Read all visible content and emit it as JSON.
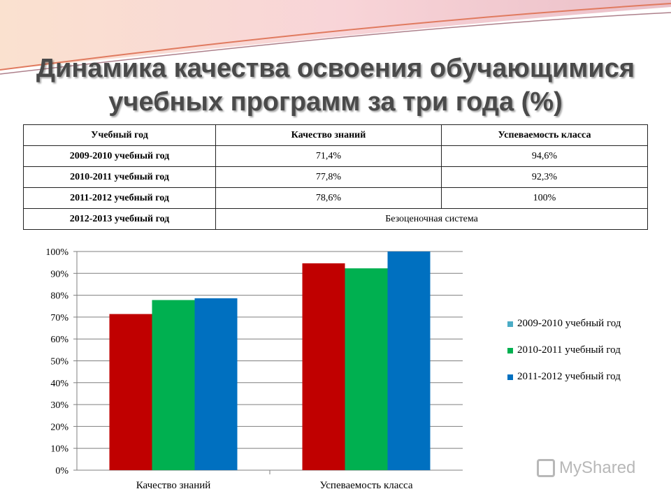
{
  "title": {
    "line1": "Динамика качества освоения обучающимися",
    "line2": "учебных программ за три года (%)"
  },
  "table": {
    "headers": [
      "Учебный год",
      "Качество знаний",
      "Успеваемость класса"
    ],
    "rows": [
      {
        "year": "2009-2010 учебный год",
        "quality": "71,4%",
        "progress": "94,6%"
      },
      {
        "year": "2010-2011 учебный год",
        "quality": "77,8%",
        "progress": "92,3%"
      },
      {
        "year": "2011-2012 учебный год",
        "quality": "78,6%",
        "progress": "100%"
      },
      {
        "year": "2012-2013 учебный год",
        "merged": "Безоценочная система"
      }
    ]
  },
  "chart_data": {
    "type": "bar",
    "categories": [
      "Качество знаний",
      "Успеваемость класса"
    ],
    "series": [
      {
        "name": "2009-2010 учебный год",
        "values": [
          71.4,
          94.6
        ],
        "color": "#c00000",
        "legend_color": "#4bacc6"
      },
      {
        "name": "2010-2011 учебный год",
        "values": [
          77.8,
          92.3
        ],
        "color": "#00b050"
      },
      {
        "name": "2011-2012 учебный год",
        "values": [
          78.6,
          100
        ],
        "color": "#0070c0"
      }
    ],
    "ylim": [
      0,
      100
    ],
    "yticks": [
      "0%",
      "10%",
      "20%",
      "30%",
      "40%",
      "50%",
      "60%",
      "70%",
      "80%",
      "90%",
      "100%"
    ],
    "grid": true,
    "legend_position": "right"
  },
  "watermark": {
    "text": "MyShared"
  }
}
